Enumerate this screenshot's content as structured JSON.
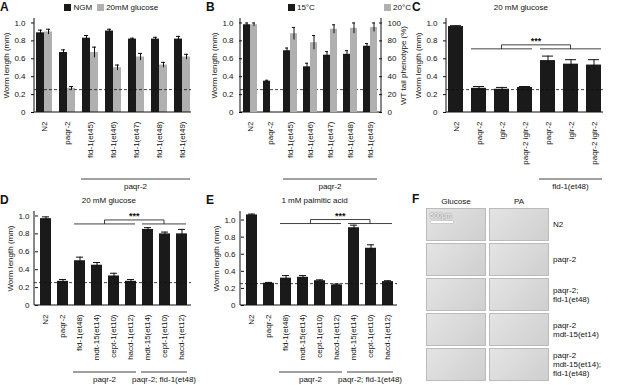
{
  "chart_data": [
    {
      "type": "bar",
      "title": "A",
      "ylabel": "Worm length (mm)",
      "categories": [
        "N2",
        "paqr-2",
        "fld-1(et45)",
        "fld-1(et46)",
        "fld-1(et47)",
        "fld-1(et48)",
        "fld-1(et49)"
      ],
      "series": [
        {
          "name": "NGM",
          "color": "#1a1a1a",
          "values": [
            0.89,
            0.67,
            0.83,
            0.91,
            0.82,
            0.82,
            0.82
          ],
          "errors": [
            0.03,
            0.03,
            0.03,
            0.02,
            0.01,
            0.02,
            0.03
          ]
        },
        {
          "name": "20mM glucose",
          "color": "#b0b0b0",
          "values": [
            0.9,
            0.27,
            0.67,
            0.5,
            0.62,
            0.53,
            0.62
          ],
          "errors": [
            0.03,
            0.02,
            0.06,
            0.03,
            0.04,
            0.03,
            0.03
          ]
        }
      ],
      "ylim": [
        0,
        1.05
      ],
      "yticks": [
        0,
        0.2,
        0.4,
        0.6,
        0.8,
        {
          "value": 1,
          "label": "1.0"
        }
      ],
      "legend": "top",
      "threshold": 0.25,
      "group_labels": [
        {
          "text": "paqr-2",
          "span": [
            2,
            6
          ]
        }
      ]
    },
    {
      "type": "bar",
      "title": "B",
      "ylabel": "Worm length (mm)",
      "y2label": "WT tail phenotype (%)",
      "categories": [
        "N2",
        "paqr-2",
        "fld-1(et45)",
        "fld-1(et46)",
        "fld-1(et47)",
        "fld-1(et48)",
        "fld-1(et49)"
      ],
      "series": [
        {
          "name": "15°C",
          "color": "#1a1a1a",
          "values": [
            0.98,
            0.35,
            0.69,
            0.51,
            0.64,
            0.65,
            0.74
          ],
          "errors": [
            0.02,
            0.01,
            0.03,
            0.04,
            0.04,
            0.04,
            0.03
          ]
        },
        {
          "name": "20°C",
          "color": "#b0b0b0",
          "axis": "y2",
          "values": [
            98,
            0,
            88,
            78,
            93,
            94,
            95
          ],
          "errors": [
            2,
            0,
            7,
            8,
            5,
            6,
            5
          ]
        }
      ],
      "ylim": [
        0,
        1.05
      ],
      "yticks": [
        0,
        0.2,
        0.4,
        0.6,
        0.8,
        {
          "value": 1,
          "label": "1.0"
        }
      ],
      "y2lim": [
        0,
        105
      ],
      "y2ticks": [
        0,
        20,
        40,
        60,
        80,
        100
      ],
      "legend": "top",
      "threshold": 0.25,
      "group_labels": [
        {
          "text": "paqr-2",
          "span": [
            2,
            6
          ]
        }
      ]
    },
    {
      "type": "bar",
      "title": "C",
      "subtitle": "20 mM glucose",
      "ylabel": "Worm length (mm)",
      "categories": [
        "N2",
        "paqr-2",
        "iglr-2",
        "paqr-2 iglr-2",
        "paqr-2",
        "iglr-2",
        "paqr-2 iglr-2"
      ],
      "color": "#1a1a1a",
      "values": [
        0.96,
        0.27,
        0.26,
        0.28,
        0.58,
        0.54,
        0.53
      ],
      "errors": [
        0.01,
        0.02,
        0.02,
        0.01,
        0.05,
        0.05,
        0.06
      ],
      "ylim": [
        0,
        1.05
      ],
      "yticks": [
        0,
        0.2,
        0.4,
        0.6,
        0.8,
        {
          "value": 1,
          "label": "1.0"
        }
      ],
      "threshold": 0.25,
      "group_labels": [
        {
          "text": "fld-1(et48)",
          "span": [
            4,
            6
          ]
        }
      ],
      "significance": [
        {
          "text": "***",
          "from": [
            1,
            3
          ],
          "to": [
            4,
            6
          ],
          "y": 0.75
        }
      ]
    },
    {
      "type": "bar",
      "title": "D",
      "subtitle": "20 mM glucose",
      "ylabel": "Worm length (mm)",
      "categories": [
        "N2",
        "paqr-2",
        "fld-1(et48)",
        "mdt-15(et14)",
        "cept-1(et10)",
        "hacd-1(et12)",
        "mdt-15(et14)",
        "cept-1(et10)",
        "hacd-1(et12)"
      ],
      "color": "#1a1a1a",
      "values": [
        0.97,
        0.27,
        0.5,
        0.45,
        0.33,
        0.27,
        0.85,
        0.8,
        0.8
      ],
      "errors": [
        0.02,
        0.02,
        0.04,
        0.03,
        0.03,
        0.02,
        0.02,
        0.02,
        0.05
      ],
      "ylim": [
        0,
        1.05
      ],
      "yticks": [
        0,
        0.2,
        0.4,
        0.6,
        0.8,
        {
          "value": 1,
          "label": "1.0"
        }
      ],
      "threshold": 0.25,
      "group_labels": [
        {
          "text": "paqr-2",
          "span": [
            2,
            5
          ]
        },
        {
          "text": "paqr-2; fld-1(et48)",
          "span": [
            6,
            8
          ]
        }
      ],
      "significance": [
        {
          "text": "***",
          "from": [
            2,
            5
          ],
          "to": [
            6,
            8
          ],
          "y": 0.95
        }
      ]
    },
    {
      "type": "bar",
      "title": "E",
      "subtitle": "1 mM palmitic acid",
      "ylabel": "Worm length (mm)",
      "categories": [
        "N2",
        "paqr-2",
        "fld-1(et48)",
        "mdt-15(et14)",
        "cept-1(et10)",
        "hacd-1(et12)",
        "mdt-15(et14)",
        "cept-1(et10)",
        "hacd-1(et12)"
      ],
      "color": "#1a1a1a",
      "values": [
        1.06,
        0.26,
        0.32,
        0.33,
        0.29,
        0.24,
        0.91,
        0.67,
        0.28
      ],
      "errors": [
        0.01,
        0.01,
        0.03,
        0.02,
        0.01,
        0.01,
        0.03,
        0.04,
        0.01
      ],
      "ylim": [
        0,
        1.1
      ],
      "yticks": [
        0,
        0.2,
        0.4,
        0.6,
        0.8,
        {
          "value": 1,
          "label": "1.0"
        }
      ],
      "threshold": 0.25,
      "group_labels": [
        {
          "text": "paqr-2",
          "span": [
            2,
            5
          ]
        },
        {
          "text": "paqr-2; fld-1(et48)",
          "span": [
            6,
            8
          ]
        }
      ],
      "significance": [
        {
          "text": "***",
          "from": [
            2,
            5
          ],
          "to": [
            6,
            8
          ],
          "y": 1
        }
      ]
    }
  ],
  "image_panel": {
    "title": "F",
    "columns": [
      "Glucose",
      "PA"
    ],
    "scale_bar": "500μm",
    "rows": [
      [
        "N2"
      ],
      [
        "paqr-2"
      ],
      [
        "paqr-2;",
        "fld-1(et48)"
      ],
      [
        "paqr-2",
        "mdt-15(et14)"
      ],
      [
        "paqr-2",
        "mdt-15(et14);",
        "fld-1(et48)"
      ]
    ]
  }
}
